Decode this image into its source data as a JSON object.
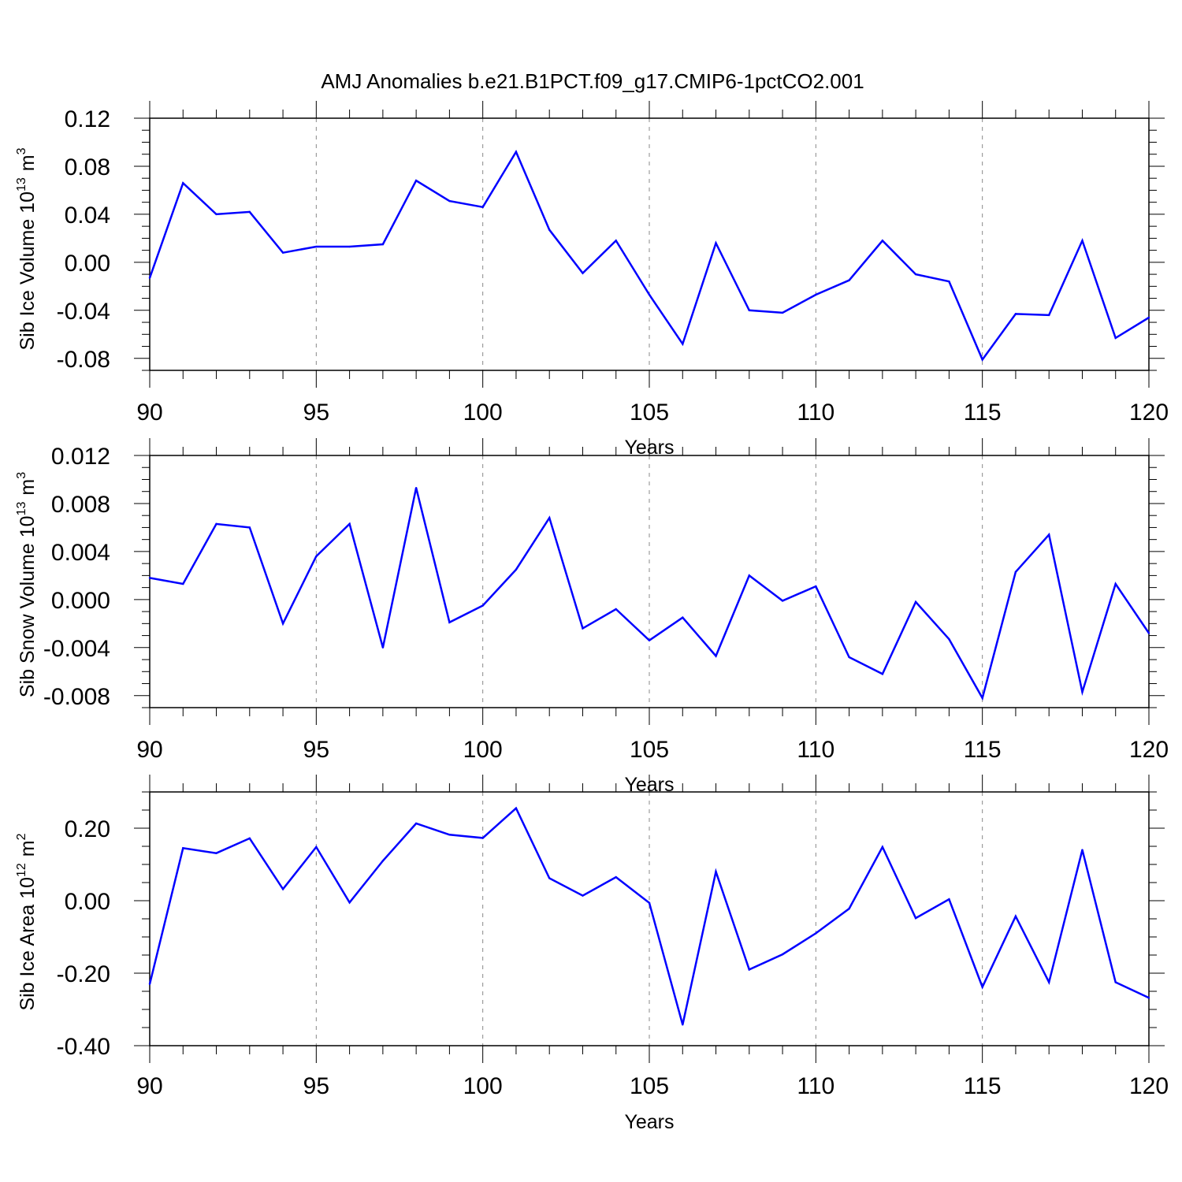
{
  "title": "AMJ Anomalies b.e21.B1PCT.f09_g17.CMIP6-1pctCO2.001",
  "colors": {
    "line": "#0000ff",
    "frame": "#000000",
    "grid": "#888888"
  },
  "chart_data": [
    {
      "type": "line",
      "xlabel": "Years",
      "ylabel": {
        "text": "Sib Ice Volume 10",
        "exp": "13",
        "unit": "m",
        "unit_exp": "3"
      },
      "xlim": [
        90,
        120
      ],
      "ylim": [
        -0.09,
        0.12
      ],
      "xticks": [
        "90",
        "95",
        "100",
        "105",
        "110",
        "115",
        "120"
      ],
      "yticks": [
        "0.12",
        "0.08",
        "0.04",
        "0.00",
        "-0.04",
        "-0.08"
      ],
      "grid": "vertical dashed at major x ticks",
      "x": [
        90,
        91,
        92,
        93,
        94,
        95,
        96,
        97,
        98,
        99,
        100,
        101,
        102,
        103,
        104,
        105,
        106,
        107,
        108,
        109,
        110,
        111,
        112,
        113,
        114,
        115,
        116,
        117,
        118,
        119,
        120
      ],
      "values": [
        -0.013,
        0.066,
        0.04,
        0.042,
        0.008,
        0.013,
        0.013,
        0.015,
        0.068,
        0.051,
        0.046,
        0.092,
        0.027,
        -0.009,
        0.018,
        -0.027,
        -0.068,
        0.016,
        -0.04,
        -0.042,
        -0.027,
        -0.015,
        0.018,
        -0.01,
        -0.016,
        -0.081,
        -0.043,
        -0.044,
        0.018,
        -0.063,
        -0.046
      ]
    },
    {
      "type": "line",
      "xlabel": "Years",
      "ylabel": {
        "text": "Sib Snow Volume 10",
        "exp": "13",
        "unit": "m",
        "unit_exp": "3"
      },
      "xlim": [
        90,
        120
      ],
      "ylim": [
        -0.009,
        0.012
      ],
      "xticks": [
        "90",
        "95",
        "100",
        "105",
        "110",
        "115",
        "120"
      ],
      "yticks": [
        "0.012",
        "0.008",
        "0.004",
        "0.000",
        "-0.004",
        "-0.008"
      ],
      "grid": "vertical dashed at major x ticks",
      "x": [
        90,
        91,
        92,
        93,
        94,
        95,
        96,
        97,
        98,
        99,
        100,
        101,
        102,
        103,
        104,
        105,
        106,
        107,
        108,
        109,
        110,
        111,
        112,
        113,
        114,
        115,
        116,
        117,
        118,
        119,
        120
      ],
      "values": [
        0.0018,
        0.0013,
        0.0063,
        0.006,
        -0.002,
        0.0036,
        0.0063,
        -0.004,
        0.0093,
        -0.0019,
        -0.0005,
        0.0025,
        0.0068,
        -0.0024,
        -0.0008,
        -0.0034,
        -0.0015,
        -0.0047,
        0.002,
        -0.0001,
        0.0011,
        -0.0048,
        -0.0062,
        -0.0002,
        -0.0033,
        -0.0082,
        0.0023,
        0.0054,
        -0.0077,
        0.0013,
        -0.0028
      ]
    },
    {
      "type": "line",
      "xlabel": "Years",
      "ylabel": {
        "text": "Sib Ice Area 10",
        "exp": "12",
        "unit": "m",
        "unit_exp": "2"
      },
      "xlim": [
        90,
        120
      ],
      "ylim": [
        -0.4,
        0.3
      ],
      "xticks": [
        "90",
        "95",
        "100",
        "105",
        "110",
        "115",
        "120"
      ],
      "yticks": [
        "0.20",
        "0.00",
        "-0.20",
        "-0.40"
      ],
      "grid": "vertical dashed at major x ticks",
      "x": [
        90,
        91,
        92,
        93,
        94,
        95,
        96,
        97,
        98,
        99,
        100,
        101,
        102,
        103,
        104,
        105,
        106,
        107,
        108,
        109,
        110,
        111,
        112,
        113,
        114,
        115,
        116,
        117,
        118,
        119,
        120
      ],
      "values": [
        -0.23,
        0.145,
        0.131,
        0.172,
        0.032,
        0.148,
        -0.005,
        0.11,
        0.213,
        0.182,
        0.173,
        0.255,
        0.062,
        0.014,
        0.065,
        -0.006,
        -0.342,
        0.08,
        -0.19,
        -0.148,
        -0.09,
        -0.022,
        0.148,
        -0.048,
        0.004,
        -0.238,
        -0.043,
        -0.225,
        0.14,
        -0.225,
        -0.268
      ]
    }
  ]
}
